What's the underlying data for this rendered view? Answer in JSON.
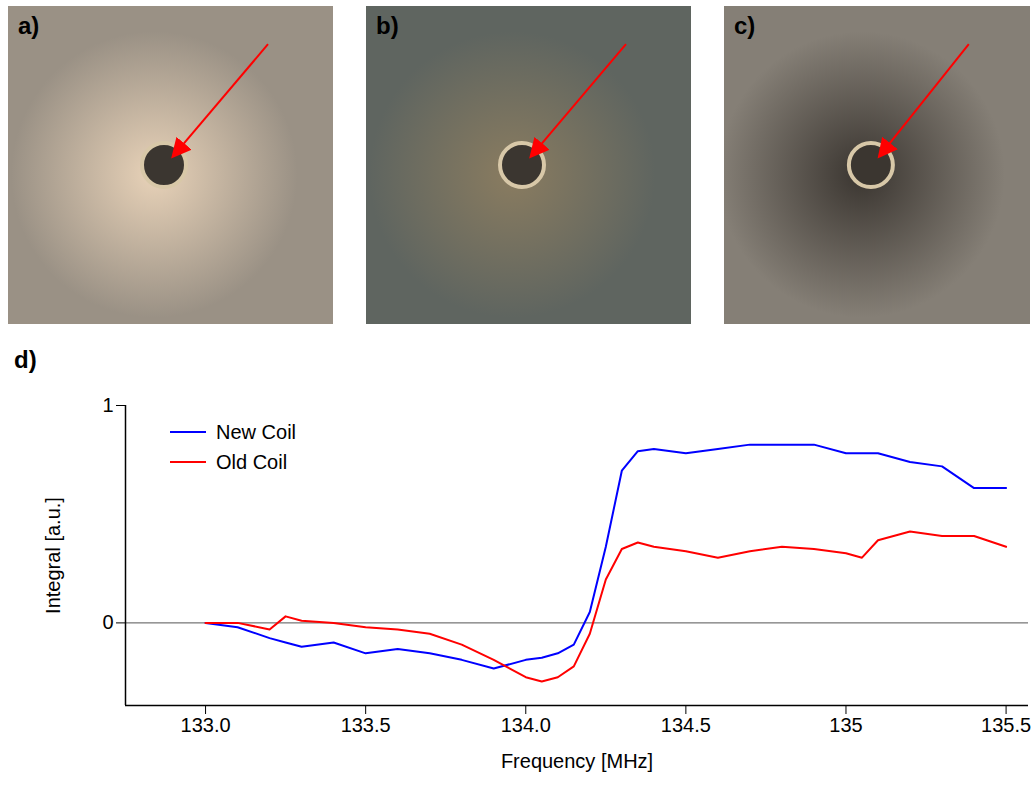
{
  "photo_labels": [
    "a)",
    "b)",
    "c)"
  ],
  "chart_data": {
    "type": "line",
    "panel_label": "d)",
    "x_label": "Frequency [MHz]",
    "y_label": "Integral [a.u.]",
    "x": [
      133.0,
      133.1,
      133.2,
      133.25,
      133.3,
      133.4,
      133.5,
      133.6,
      133.7,
      133.8,
      133.9,
      134.0,
      134.05,
      134.1,
      134.15,
      134.2,
      134.25,
      134.3,
      134.35,
      134.4,
      134.5,
      134.6,
      134.7,
      134.8,
      134.9,
      135.0,
      135.05,
      135.1,
      135.2,
      135.3,
      135.4,
      135.5
    ],
    "series": [
      {
        "name": "New Coil",
        "color": "#0000ff",
        "values": [
          0,
          -0.02,
          -0.07,
          -0.09,
          -0.11,
          -0.09,
          -0.14,
          -0.12,
          -0.14,
          -0.17,
          -0.21,
          -0.17,
          -0.16,
          -0.14,
          -0.1,
          0.05,
          0.35,
          0.7,
          0.79,
          0.8,
          0.78,
          0.8,
          0.82,
          0.82,
          0.82,
          0.78,
          0.78,
          0.78,
          0.74,
          0.72,
          0.62,
          0.62
        ]
      },
      {
        "name": "Old Coil",
        "color": "#ff0000",
        "values": [
          0,
          0.0,
          -0.03,
          0.03,
          0.01,
          0.0,
          -0.02,
          -0.03,
          -0.05,
          -0.1,
          -0.17,
          -0.25,
          -0.27,
          -0.25,
          -0.2,
          -0.05,
          0.2,
          0.34,
          0.37,
          0.35,
          0.33,
          0.3,
          0.33,
          0.35,
          0.34,
          0.32,
          0.3,
          0.38,
          0.42,
          0.4,
          0.4,
          0.35
        ]
      }
    ],
    "xlim": [
      132.75,
      135.57
    ],
    "xticks": [
      {
        "value": 133,
        "label": "133.0"
      },
      133.5,
      {
        "value": 134,
        "label": "134.0"
      },
      134.5,
      135,
      135.5
    ],
    "ylim": [
      -0.38,
      1
    ],
    "yticks": [
      0,
      1
    ],
    "legend": "upper left"
  }
}
